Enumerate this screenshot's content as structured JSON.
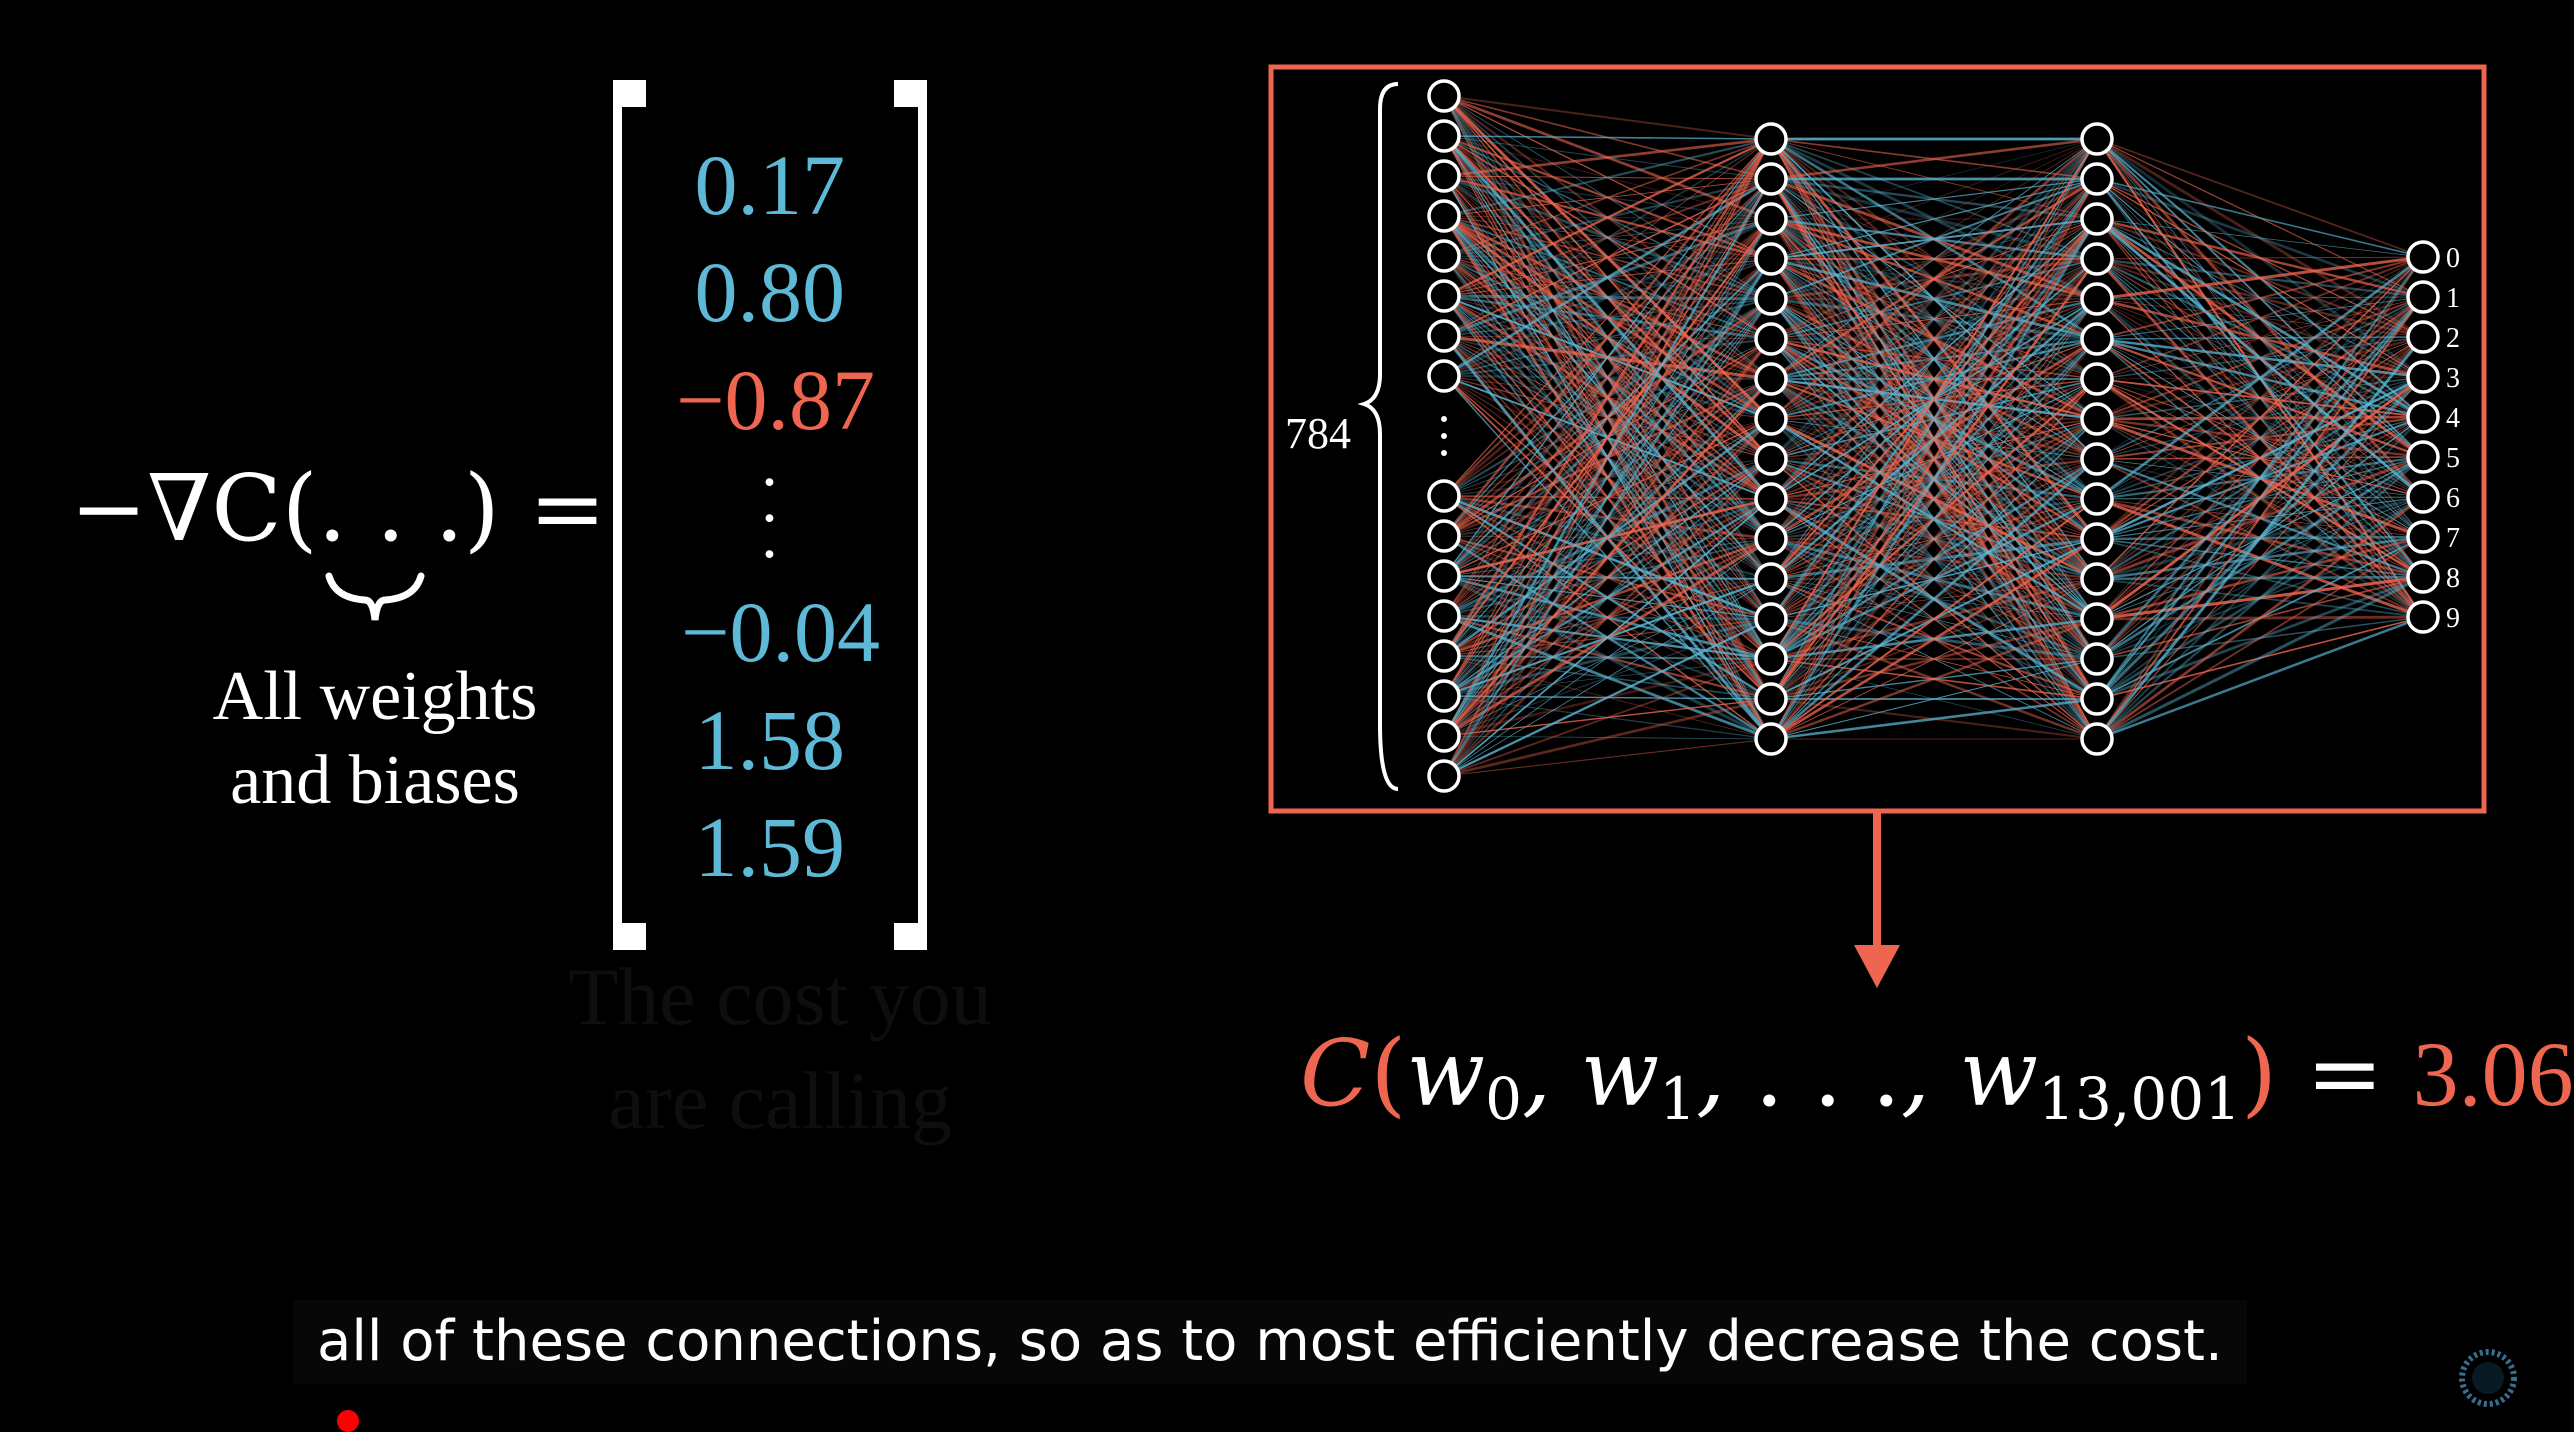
{
  "gradient": {
    "prefix": "−∇C(",
    "dots": ". . .",
    "suffix": ") =",
    "args_label_line1": "All weights",
    "args_label_line2": "and biases"
  },
  "vector": {
    "entries": [
      {
        "text": "0.17",
        "color": "#5db9d6"
      },
      {
        "text": "0.80",
        "color": "#5db9d6"
      },
      {
        "text": "−0.87",
        "color": "#ef6650"
      },
      {
        "text": "−0.04",
        "color": "#5db9d6"
      },
      {
        "text": "1.58",
        "color": "#5db9d6"
      },
      {
        "text": "1.59",
        "color": "#5db9d6"
      }
    ],
    "vdots": "⋮"
  },
  "ghost_text": {
    "line1": "The cost you",
    "line2": "are calling"
  },
  "network": {
    "input_count_label": "784",
    "output_labels": [
      "0",
      "1",
      "2",
      "3",
      "4",
      "5",
      "6",
      "7",
      "8",
      "9"
    ],
    "frame_color": "#ef6650",
    "positive_color": "#5db9d6",
    "negative_color": "#ef6650"
  },
  "cost": {
    "func": "C",
    "open": "(",
    "w": "w",
    "sub0": "0",
    "sub1": "1",
    "subN": "13,001",
    "sep": ",",
    "ellipsis": ". . .",
    "close": ")",
    "equals": "=",
    "value": "3.06"
  },
  "caption": {
    "text": "all of these connections, so as to most efficiently decrease the cost."
  }
}
